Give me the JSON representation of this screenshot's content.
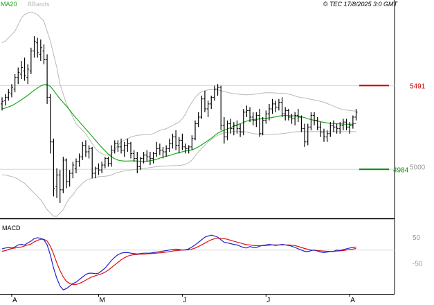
{
  "header": {
    "ma_label": "MA20",
    "bb_label": "BBands",
    "copyright": "© TEC 17/8/2025 3:0 GMT"
  },
  "colors": {
    "ma": "#1aaa1a",
    "bbands": "#b8b8b8",
    "price": "#000000",
    "resistance": "#cc0000",
    "support": "#0a8a0a",
    "macd": "#2222cc",
    "signal": "#dd1111",
    "grid": "#d8d8d8",
    "axis_text": "#999999"
  },
  "levels": {
    "resistance": {
      "value": 5491,
      "label": "5491"
    },
    "support": {
      "value": 4984,
      "label": "4984"
    }
  },
  "macd_panel": {
    "title": "MACD",
    "ticks": [
      {
        "value": 50,
        "label": "50"
      },
      {
        "value": -50,
        "label": "-50"
      }
    ]
  },
  "price_axis": {
    "ticks": [
      {
        "value": 5000,
        "label": "5000"
      }
    ]
  },
  "chart_data": {
    "type": "candlestick",
    "x_labels": [
      "A",
      "M",
      "J",
      "J",
      "A"
    ],
    "x_label_index": [
      3,
      30,
      56,
      82,
      108
    ],
    "ylim": [
      4700,
      5950
    ],
    "macd_ylim": [
      -160,
      110
    ],
    "ohlc": [
      [
        5380,
        5420,
        5340,
        5395
      ],
      [
        5400,
        5440,
        5370,
        5420
      ],
      [
        5420,
        5470,
        5400,
        5450
      ],
      [
        5440,
        5500,
        5420,
        5480
      ],
      [
        5470,
        5560,
        5450,
        5540
      ],
      [
        5540,
        5600,
        5500,
        5570
      ],
      [
        5560,
        5640,
        5530,
        5600
      ],
      [
        5580,
        5660,
        5520,
        5550
      ],
      [
        5540,
        5620,
        5500,
        5590
      ],
      [
        5580,
        5720,
        5560,
        5700
      ],
      [
        5700,
        5790,
        5660,
        5760
      ],
      [
        5750,
        5780,
        5660,
        5690
      ],
      [
        5680,
        5770,
        5640,
        5720
      ],
      [
        5700,
        5740,
        5620,
        5650
      ],
      [
        5650,
        5680,
        5380,
        5420
      ],
      [
        5420,
        5440,
        5080,
        5150
      ],
      [
        5150,
        5170,
        4820,
        4870
      ],
      [
        4880,
        4990,
        4810,
        4950
      ],
      [
        4950,
        4980,
        4780,
        4860
      ],
      [
        4860,
        5060,
        4840,
        5040
      ],
      [
        5040,
        5050,
        4870,
        4910
      ],
      [
        4910,
        4980,
        4880,
        4960
      ],
      [
        4960,
        5030,
        4930,
        5010
      ],
      [
        4990,
        5050,
        4960,
        5030
      ],
      [
        5030,
        5080,
        5000,
        5060
      ],
      [
        5060,
        5150,
        5040,
        5130
      ],
      [
        5130,
        5160,
        5060,
        5090
      ],
      [
        5090,
        5130,
        5050,
        5110
      ],
      [
        5110,
        5120,
        4930,
        4960
      ],
      [
        4960,
        5000,
        4930,
        4990
      ],
      [
        4990,
        5020,
        4950,
        4980
      ],
      [
        4980,
        5030,
        4960,
        5010
      ],
      [
        5010,
        5060,
        4990,
        5050
      ],
      [
        5050,
        5060,
        5000,
        5020
      ],
      [
        5020,
        5130,
        5000,
        5100
      ],
      [
        5100,
        5160,
        5080,
        5140
      ],
      [
        5140,
        5160,
        5090,
        5120
      ],
      [
        5120,
        5170,
        5080,
        5100
      ],
      [
        5100,
        5150,
        5060,
        5130
      ],
      [
        5130,
        5170,
        5090,
        5140
      ],
      [
        5140,
        5150,
        5050,
        5080
      ],
      [
        5080,
        5100,
        5030,
        5050
      ],
      [
        5050,
        5090,
        4960,
        5000
      ],
      [
        5000,
        5060,
        4980,
        5050
      ],
      [
        5050,
        5090,
        5020,
        5070
      ],
      [
        5070,
        5100,
        5030,
        5060
      ],
      [
        5060,
        5090,
        5010,
        5050
      ],
      [
        5050,
        5090,
        5020,
        5080
      ],
      [
        5080,
        5150,
        5060,
        5110
      ],
      [
        5110,
        5140,
        5070,
        5100
      ],
      [
        5100,
        5120,
        5050,
        5090
      ],
      [
        5090,
        5130,
        5060,
        5110
      ],
      [
        5110,
        5170,
        5090,
        5140
      ],
      [
        5140,
        5200,
        5110,
        5180
      ],
      [
        5180,
        5220,
        5100,
        5130
      ],
      [
        5130,
        5180,
        5080,
        5160
      ],
      [
        5160,
        5200,
        5100,
        5120
      ],
      [
        5120,
        5140,
        5080,
        5110
      ],
      [
        5110,
        5130,
        5080,
        5120
      ],
      [
        5120,
        5190,
        5100,
        5170
      ],
      [
        5170,
        5280,
        5160,
        5260
      ],
      [
        5260,
        5330,
        5240,
        5300
      ],
      [
        5300,
        5430,
        5290,
        5410
      ],
      [
        5410,
        5460,
        5330,
        5350
      ],
      [
        5350,
        5400,
        5300,
        5380
      ],
      [
        5380,
        5430,
        5350,
        5420
      ],
      [
        5420,
        5490,
        5400,
        5470
      ],
      [
        5470,
        5500,
        5430,
        5480
      ],
      [
        5480,
        5490,
        5220,
        5250
      ],
      [
        5250,
        5300,
        5140,
        5180
      ],
      [
        5180,
        5280,
        5160,
        5260
      ],
      [
        5260,
        5290,
        5200,
        5230
      ],
      [
        5230,
        5270,
        5190,
        5250
      ],
      [
        5250,
        5280,
        5200,
        5230
      ],
      [
        5230,
        5260,
        5180,
        5210
      ],
      [
        5210,
        5350,
        5190,
        5330
      ],
      [
        5330,
        5370,
        5300,
        5340
      ],
      [
        5340,
        5360,
        5270,
        5300
      ],
      [
        5300,
        5330,
        5250,
        5280
      ],
      [
        5280,
        5330,
        5240,
        5310
      ],
      [
        5310,
        5350,
        5180,
        5200
      ],
      [
        5200,
        5300,
        5190,
        5280
      ],
      [
        5280,
        5340,
        5260,
        5320
      ],
      [
        5320,
        5380,
        5280,
        5350
      ],
      [
        5350,
        5410,
        5320,
        5380
      ],
      [
        5380,
        5400,
        5330,
        5360
      ],
      [
        5360,
        5410,
        5340,
        5390
      ],
      [
        5390,
        5420,
        5300,
        5320
      ],
      [
        5320,
        5360,
        5280,
        5340
      ],
      [
        5340,
        5350,
        5280,
        5300
      ],
      [
        5300,
        5320,
        5260,
        5290
      ],
      [
        5290,
        5330,
        5250,
        5310
      ],
      [
        5310,
        5350,
        5270,
        5300
      ],
      [
        5300,
        5310,
        5210,
        5230
      ],
      [
        5230,
        5260,
        5120,
        5150
      ],
      [
        5150,
        5260,
        5130,
        5240
      ],
      [
        5240,
        5330,
        5220,
        5310
      ],
      [
        5310,
        5330,
        5250,
        5280
      ],
      [
        5280,
        5300,
        5220,
        5240
      ],
      [
        5240,
        5270,
        5180,
        5210
      ],
      [
        5210,
        5230,
        5150,
        5180
      ],
      [
        5180,
        5220,
        5150,
        5200
      ],
      [
        5200,
        5270,
        5180,
        5250
      ],
      [
        5250,
        5280,
        5210,
        5240
      ],
      [
        5240,
        5260,
        5200,
        5230
      ],
      [
        5230,
        5270,
        5200,
        5250
      ],
      [
        5250,
        5290,
        5220,
        5270
      ],
      [
        5270,
        5290,
        5220,
        5240
      ],
      [
        5240,
        5270,
        5200,
        5250
      ],
      [
        5250,
        5310,
        5230,
        5300
      ],
      [
        5300,
        5350,
        5280,
        5330
      ]
    ],
    "ma20": [
      5350,
      5355,
      5362,
      5370,
      5380,
      5392,
      5405,
      5418,
      5432,
      5448,
      5462,
      5476,
      5489,
      5497,
      5497,
      5486,
      5462,
      5435,
      5410,
      5388,
      5366,
      5342,
      5318,
      5294,
      5272,
      5250,
      5228,
      5206,
      5183,
      5160,
      5138,
      5116,
      5096,
      5076,
      5060,
      5048,
      5040,
      5036,
      5034,
      5034,
      5035,
      5035,
      5034,
      5033,
      5032,
      5033,
      5036,
      5040,
      5045,
      5052,
      5058,
      5063,
      5068,
      5074,
      5080,
      5085,
      5090,
      5095,
      5098,
      5102,
      5110,
      5120,
      5132,
      5145,
      5158,
      5172,
      5188,
      5203,
      5213,
      5220,
      5228,
      5236,
      5245,
      5253,
      5260,
      5268,
      5276,
      5282,
      5285,
      5287,
      5289,
      5291,
      5293,
      5295,
      5298,
      5302,
      5306,
      5309,
      5310,
      5309,
      5308,
      5307,
      5305,
      5302,
      5297,
      5290,
      5285,
      5280,
      5276,
      5272,
      5268,
      5265,
      5263,
      5262,
      5260,
      5259,
      5258,
      5257,
      5256,
      5258,
      5262
    ],
    "bb_upper": [
      5750,
      5760,
      5780,
      5800,
      5820,
      5860,
      5900,
      5920,
      5930,
      5935,
      5930,
      5920,
      5900,
      5880,
      5820,
      5760,
      5680,
      5600,
      5500,
      5440,
      5380,
      5340,
      5300,
      5260,
      5240,
      5220,
      5200,
      5170,
      5140,
      5110,
      5090,
      5080,
      5070,
      5070,
      5080,
      5100,
      5130,
      5150,
      5160,
      5170,
      5180,
      5185,
      5190,
      5192,
      5193,
      5193,
      5195,
      5200,
      5210,
      5220,
      5225,
      5230,
      5240,
      5250,
      5260,
      5270,
      5290,
      5320,
      5360,
      5390,
      5420,
      5440,
      5455,
      5460,
      5465,
      5466,
      5466,
      5465,
      5460,
      5455,
      5450,
      5446,
      5442,
      5440,
      5438,
      5436,
      5435,
      5436,
      5438,
      5440,
      5443,
      5446,
      5448,
      5448,
      5447,
      5446,
      5445,
      5444,
      5443,
      5440,
      5435,
      5428,
      5422,
      5418,
      5415,
      5412,
      5408,
      5404,
      5400,
      5395,
      5390,
      5382,
      5374,
      5366,
      5358,
      5350,
      5345,
      5342,
      5340,
      5338,
      5336
    ],
    "bb_lower": [
      4950,
      4950,
      4945,
      4940,
      4935,
      4925,
      4910,
      4900,
      4880,
      4860,
      4840,
      4820,
      4800,
      4770,
      4740,
      4720,
      4700,
      4700,
      4720,
      4740,
      4780,
      4810,
      4830,
      4860,
      4880,
      4900,
      4915,
      4925,
      4930,
      4935,
      4940,
      4940,
      4942,
      4945,
      4950,
      4960,
      4965,
      4970,
      4975,
      4978,
      4980,
      4982,
      4985,
      4988,
      4990,
      4992,
      4995,
      4998,
      5000,
      5002,
      5003,
      5004,
      5005,
      5006,
      5007,
      5008,
      5010,
      5015,
      5025,
      5040,
      5065,
      5090,
      5110,
      5130,
      5150,
      5165,
      5178,
      5190,
      5200,
      5205,
      5208,
      5210,
      5212,
      5213,
      5213,
      5212,
      5210,
      5205,
      5200,
      5198,
      5197,
      5196,
      5196,
      5196,
      5196,
      5197,
      5198,
      5200,
      5202,
      5205,
      5208,
      5211,
      5212,
      5213,
      5213,
      5212,
      5212,
      5212,
      5212,
      5212,
      5212,
      5212,
      5212,
      5212,
      5212,
      5212,
      5212,
      5212,
      5212,
      5212,
      5212
    ],
    "macd": [
      5,
      8,
      10,
      8,
      12,
      20,
      22,
      20,
      28,
      35,
      45,
      48,
      46,
      40,
      20,
      -20,
      -70,
      -110,
      -140,
      -155,
      -150,
      -140,
      -130,
      -125,
      -115,
      -105,
      -95,
      -90,
      -90,
      -92,
      -90,
      -80,
      -70,
      -55,
      -40,
      -28,
      -18,
      -12,
      -10,
      -10,
      -12,
      -14,
      -15,
      -14,
      -12,
      -12,
      -12,
      -10,
      -8,
      -6,
      -4,
      -2,
      0,
      2,
      4,
      2,
      0,
      1,
      5,
      12,
      20,
      30,
      40,
      50,
      55,
      58,
      55,
      50,
      40,
      30,
      28,
      25,
      22,
      20,
      15,
      10,
      8,
      14,
      10,
      10,
      15,
      18,
      20,
      22,
      20,
      18,
      20,
      22,
      20,
      18,
      15,
      10,
      5,
      0,
      -5,
      -6,
      -2,
      0,
      -4,
      -8,
      -10,
      -8,
      -5,
      -5,
      0,
      -2,
      2,
      5,
      8,
      10,
      12
    ],
    "signal": [
      -5,
      -2,
      2,
      6,
      8,
      10,
      12,
      16,
      20,
      24,
      32,
      38,
      42,
      42,
      35,
      15,
      -15,
      -50,
      -80,
      -105,
      -122,
      -130,
      -134,
      -134,
      -130,
      -124,
      -117,
      -110,
      -104,
      -100,
      -96,
      -92,
      -86,
      -78,
      -68,
      -58,
      -48,
      -38,
      -30,
      -24,
      -20,
      -18,
      -17,
      -16,
      -16,
      -15,
      -14,
      -13,
      -12,
      -11,
      -10,
      -8,
      -6,
      -4,
      -2,
      -1,
      0,
      0,
      1,
      4,
      8,
      14,
      20,
      27,
      34,
      40,
      44,
      46,
      46,
      44,
      42,
      38,
      34,
      31,
      28,
      24,
      21,
      20,
      18,
      17,
      17,
      17,
      18,
      19,
      20,
      20,
      20,
      20,
      20,
      20,
      19,
      17,
      14,
      10,
      6,
      3,
      0,
      -1,
      -2,
      -3,
      -4,
      -5,
      -5,
      -5,
      -4,
      -3,
      -2,
      0,
      2,
      4,
      6
    ]
  }
}
